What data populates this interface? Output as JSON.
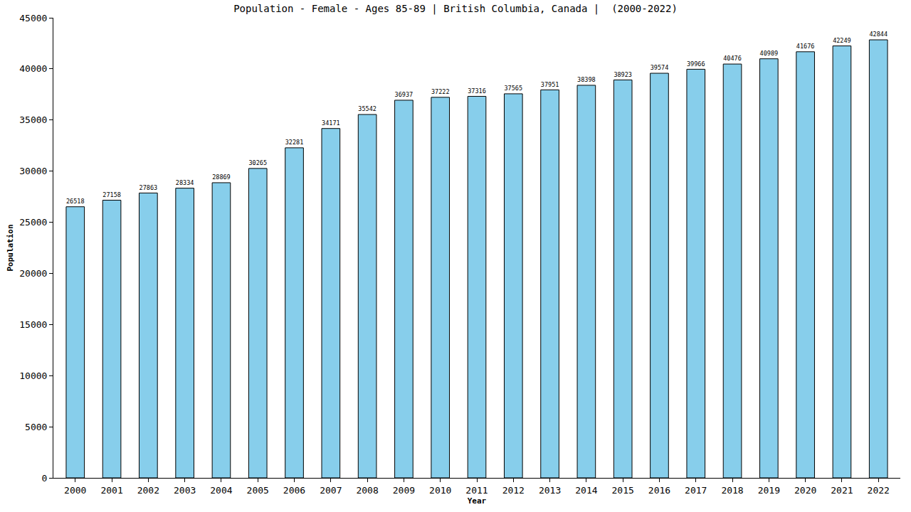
{
  "chart_data": {
    "type": "bar",
    "title": "Population - Female - Ages 85-89 | British Columbia, Canada |  (2000-2022)",
    "x_label": "Year",
    "y_label": "Population",
    "categories": [
      "2000",
      "2001",
      "2002",
      "2003",
      "2004",
      "2005",
      "2006",
      "2007",
      "2008",
      "2009",
      "2010",
      "2011",
      "2012",
      "2013",
      "2014",
      "2015",
      "2016",
      "2017",
      "2018",
      "2019",
      "2020",
      "2021",
      "2022"
    ],
    "values": [
      26518,
      27158,
      27863,
      28334,
      28869,
      30265,
      32281,
      34171,
      35542,
      36937,
      37222,
      37316,
      37565,
      37951,
      38398,
      38923,
      39574,
      39966,
      40476,
      40989,
      41676,
      42249,
      42844
    ],
    "color": "#87ceeb",
    "ylim": [
      0,
      45000
    ],
    "yticks": [
      0,
      5000,
      10000,
      15000,
      20000,
      25000,
      30000,
      35000,
      40000,
      45000
    ],
    "grid": false,
    "data_labels": true
  }
}
